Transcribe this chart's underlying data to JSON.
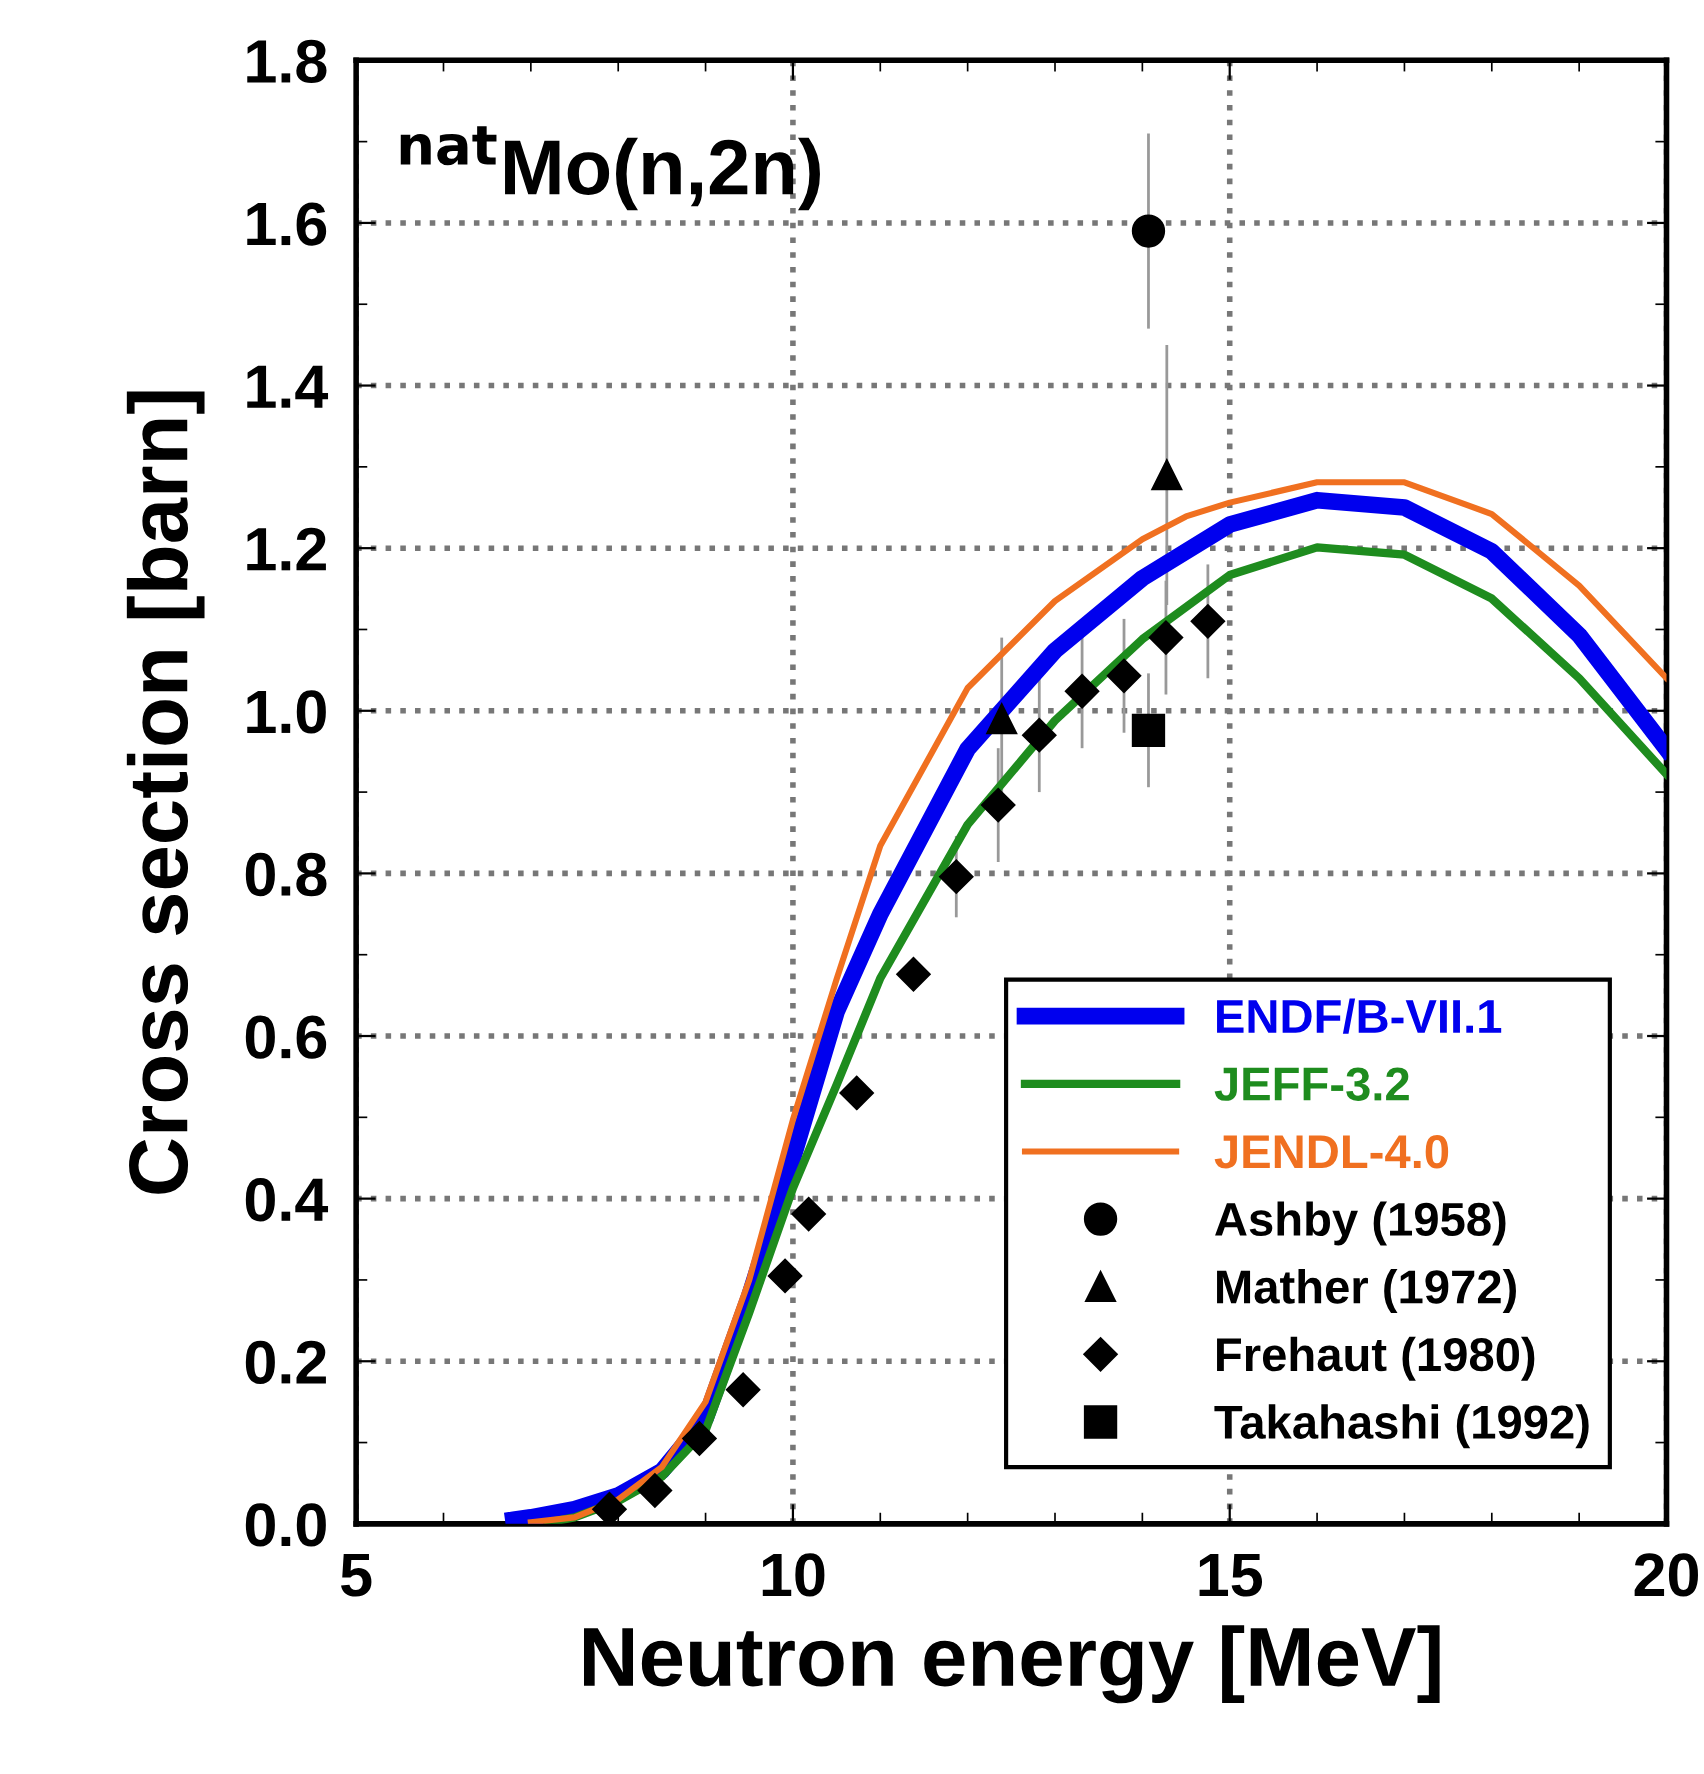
{
  "chart_data": {
    "type": "line",
    "xlabel": "Neutron energy [MeV]",
    "ylabel": "Cross section [barn]",
    "annotations": [
      "$^{nat}$Mo(n,2n)"
    ],
    "xlim": [
      5,
      20
    ],
    "xticks": [
      5,
      10,
      15,
      20
    ],
    "ylim": [
      0,
      1.8
    ],
    "yticks": [
      {
        "value": 0,
        "label": "0.0"
      },
      {
        "value": 0.2,
        "label": "0.2"
      },
      {
        "value": 0.4,
        "label": "0.4"
      },
      {
        "value": 0.6,
        "label": "0.6"
      },
      {
        "value": 0.8,
        "label": "0.8"
      },
      {
        "value": 1.0,
        "label": "1.0"
      },
      {
        "value": 1.2,
        "label": "1.2"
      },
      {
        "value": 1.4,
        "label": "1.4"
      },
      {
        "value": 1.6,
        "label": "1.6"
      },
      {
        "value": 1.8,
        "label": "1.8"
      }
    ],
    "grid": true,
    "legend": "bottom right",
    "series": [
      {
        "name": "ENDF/B-VII.1",
        "color": "#0000ee",
        "line_style": "solid",
        "marker": "none",
        "x": [
          6.8,
          7,
          7.5,
          8,
          8.5,
          9,
          9.5,
          10,
          10.5,
          11,
          12,
          13,
          14,
          15,
          16,
          17,
          18,
          19,
          20
        ],
        "values": [
          0.005,
          0.008,
          0.018,
          0.035,
          0.065,
          0.13,
          0.28,
          0.45,
          0.63,
          0.75,
          0.953,
          1.074,
          1.163,
          1.229,
          1.259,
          1.25,
          1.196,
          1.093,
          0.953
        ]
      },
      {
        "name": "JEFF-3.2",
        "color": "#1e8c1e",
        "line_style": "solid",
        "marker": "none",
        "x": [
          7.2,
          7.5,
          8,
          8.5,
          9,
          9.5,
          10,
          10.5,
          11,
          12,
          13,
          14,
          15,
          16,
          17,
          18,
          19,
          20
        ],
        "values": [
          0.002,
          0.008,
          0.028,
          0.058,
          0.115,
          0.26,
          0.413,
          0.54,
          0.671,
          0.86,
          0.988,
          1.088,
          1.167,
          1.201,
          1.192,
          1.138,
          1.04,
          0.922
        ]
      },
      {
        "name": "JENDL-4.0",
        "color": "#f07020",
        "line_style": "solid",
        "marker": "none",
        "x": [
          7,
          7.5,
          8,
          8.5,
          9,
          9.5,
          10,
          10.5,
          11,
          12,
          13,
          14,
          14.5,
          15,
          16,
          17,
          18,
          19,
          20
        ],
        "values": [
          0.002,
          0.008,
          0.03,
          0.07,
          0.15,
          0.3,
          0.497,
          0.67,
          0.834,
          1.028,
          1.135,
          1.211,
          1.239,
          1.256,
          1.281,
          1.281,
          1.242,
          1.154,
          1.04
        ]
      },
      {
        "name": "Ashby (1958)",
        "type": "scatter",
        "color": "#000000",
        "marker": "circle",
        "x": [
          14.07
        ],
        "values": [
          1.59
        ],
        "errors": [
          0.12
        ]
      },
      {
        "name": "Mather (1972)",
        "type": "scatter",
        "color": "#000000",
        "marker": "triangle",
        "x": [
          12.39,
          14.28
        ],
        "values": [
          0.99,
          1.29
        ],
        "errors": [
          0.1,
          0.16
        ]
      },
      {
        "name": "Frehaut (1980)",
        "type": "scatter",
        "color": "#000000",
        "marker": "diamond",
        "x": [
          7.9,
          8.42,
          8.93,
          9.43,
          9.91,
          10.18,
          10.73,
          11.38,
          11.87,
          12.35,
          12.82,
          13.31,
          13.79,
          14.27,
          14.75
        ],
        "values": [
          0.018,
          0.041,
          0.105,
          0.165,
          0.305,
          0.381,
          0.53,
          0.676,
          0.796,
          0.884,
          0.97,
          1.024,
          1.043,
          1.09,
          1.11
        ],
        "errors": [
          null,
          null,
          null,
          null,
          null,
          null,
          0.02,
          0.02,
          0.05,
          0.07,
          0.07,
          0.07,
          0.07,
          0.07,
          0.07
        ]
      },
      {
        "name": "Takahashi (1992)",
        "type": "scatter",
        "color": "#000000",
        "marker": "square",
        "x": [
          14.07
        ],
        "values": [
          0.976
        ],
        "errors": [
          0.07
        ]
      }
    ]
  }
}
